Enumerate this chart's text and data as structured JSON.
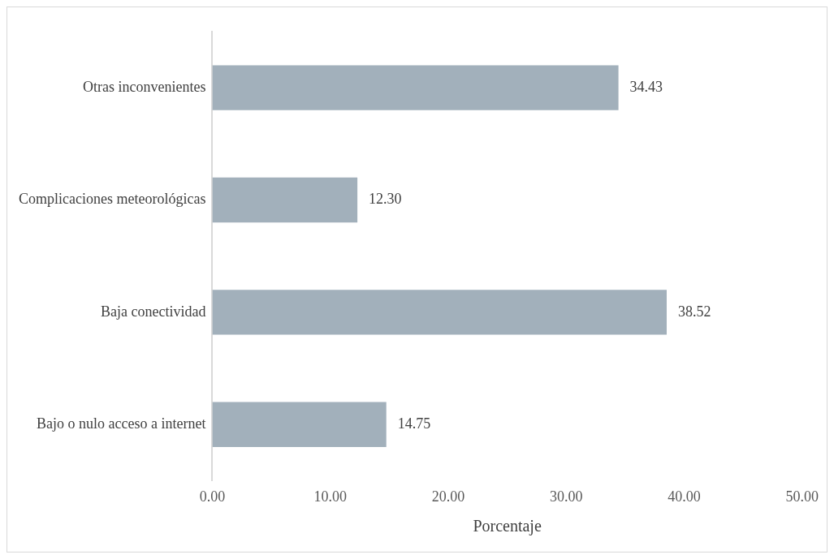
{
  "chart_data": {
    "type": "bar",
    "orientation": "horizontal",
    "xlabel": "Porcentaje",
    "categories": [
      "Otras inconvenientes",
      "Complicaciones meteorológicas",
      "Baja conectividad",
      "Bajo o nulo acceso a internet"
    ],
    "values": [
      34.43,
      12.3,
      38.52,
      14.75
    ],
    "value_labels": [
      "34.43",
      "12.30",
      "38.52",
      "14.75"
    ],
    "color": "#a2b0bb",
    "xlim": [
      0,
      50
    ],
    "xticks": [
      {
        "value": 0,
        "label": "0.00"
      },
      {
        "value": 10,
        "label": "10.00"
      },
      {
        "value": 20,
        "label": "20.00"
      },
      {
        "value": 30,
        "label": "30.00"
      },
      {
        "value": 40,
        "label": "40.00"
      },
      {
        "value": 50,
        "label": "50.00"
      }
    ],
    "grid": false,
    "legend": false
  }
}
